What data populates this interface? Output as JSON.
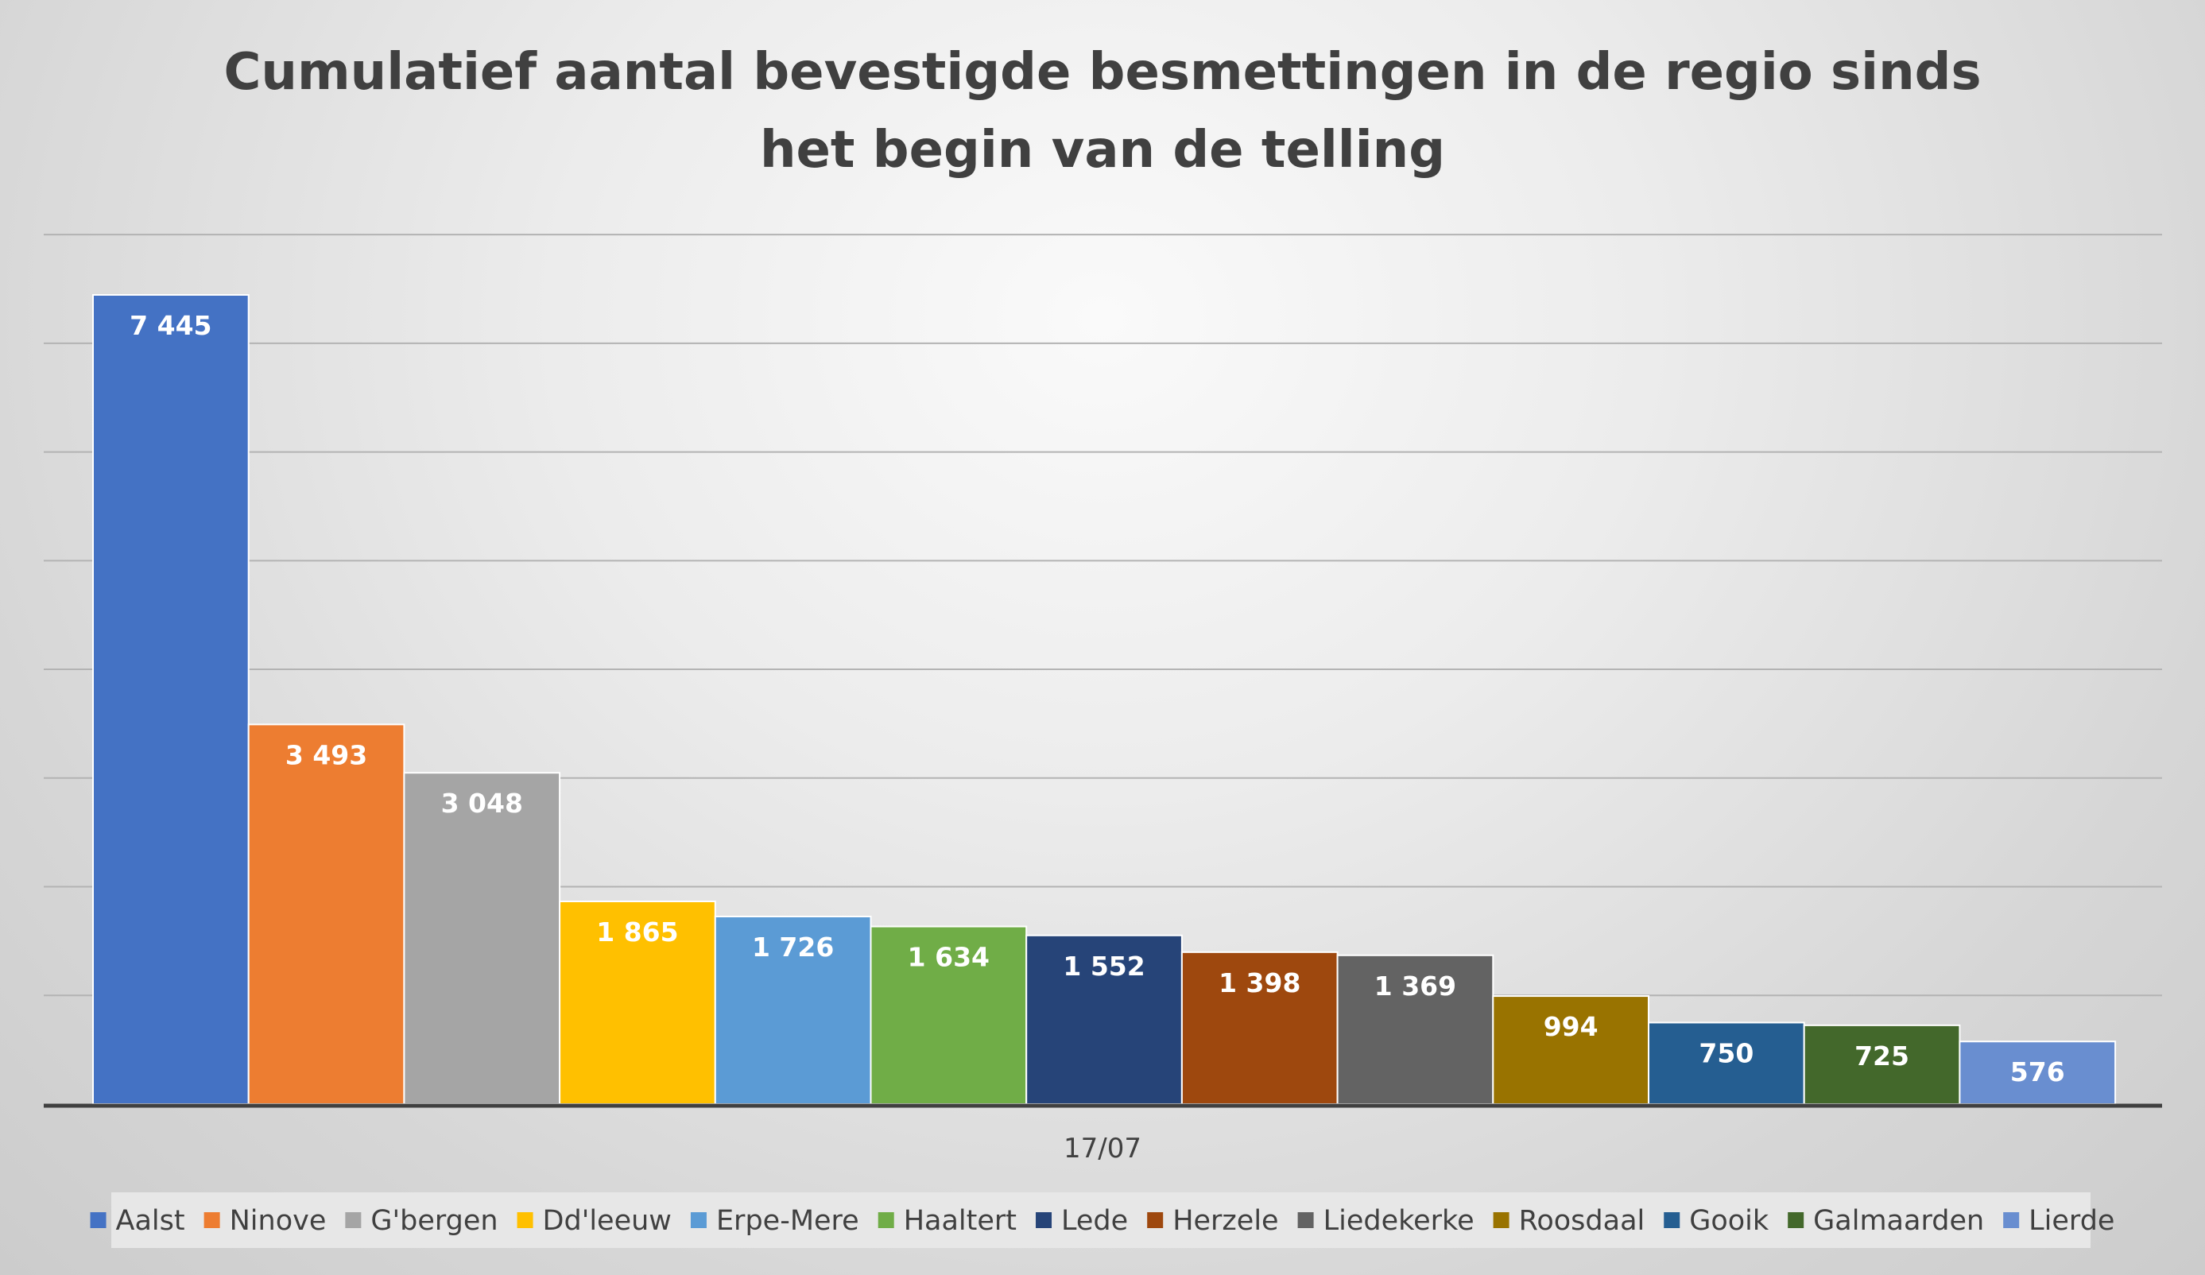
{
  "chart_data": {
    "type": "bar",
    "title": "Cumulatief aantal bevestigde besmettingen in de regio sinds het begin van de telling",
    "title_lines": [
      "Cumulatief aantal bevestigde besmettingen in de regio sinds",
      "het begin van de telling"
    ],
    "categories": [
      "17/07"
    ],
    "series": [
      {
        "name": "Aalst",
        "values": [
          7445
        ],
        "label": "7 445",
        "color": "#4472C4"
      },
      {
        "name": "Ninove",
        "values": [
          3493
        ],
        "label": "3 493",
        "color": "#ED7D31"
      },
      {
        "name": "G'bergen",
        "values": [
          3048
        ],
        "label": "3 048",
        "color": "#A5A5A5"
      },
      {
        "name": "Dd'leeuw",
        "values": [
          1865
        ],
        "label": "1 865",
        "color": "#FFC000"
      },
      {
        "name": "Erpe-Mere",
        "values": [
          1726
        ],
        "label": "1 726",
        "color": "#5B9BD5"
      },
      {
        "name": "Haaltert",
        "values": [
          1634
        ],
        "label": "1 634",
        "color": "#70AD47"
      },
      {
        "name": "Lede",
        "values": [
          1552
        ],
        "label": "1 552",
        "color": "#264478"
      },
      {
        "name": "Herzele",
        "values": [
          1398
        ],
        "label": "1 398",
        "color": "#9E480E"
      },
      {
        "name": "Liedekerke",
        "values": [
          1369
        ],
        "label": "1 369",
        "color": "#636363"
      },
      {
        "name": "Roosdaal",
        "values": [
          994
        ],
        "label": "994",
        "color": "#997300"
      },
      {
        "name": "Gooik",
        "values": [
          750
        ],
        "label": "750",
        "color": "#255E91"
      },
      {
        "name": "Galmaarden",
        "values": [
          725
        ],
        "label": "725",
        "color": "#43682B"
      },
      {
        "name": "Lierde",
        "values": [
          576
        ],
        "label": "576",
        "color": "#698ED0"
      }
    ],
    "xlabel": "",
    "ylabel": "",
    "ylim": [
      0,
      8000
    ],
    "ytick_step": 1000,
    "grid": true,
    "legend_position": "bottom"
  }
}
